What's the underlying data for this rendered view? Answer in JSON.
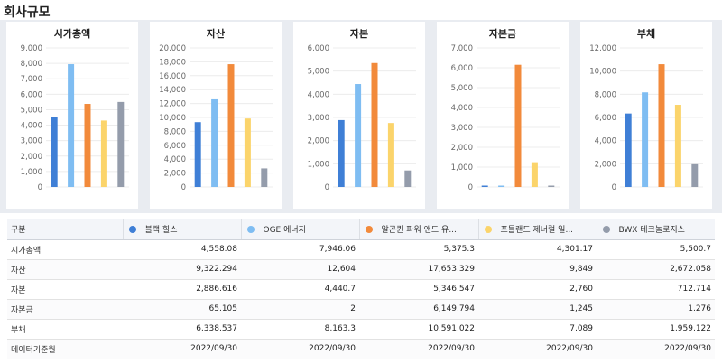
{
  "page": {
    "title": "회사규모"
  },
  "legend": {
    "series": [
      {
        "name": "블랙 힐스",
        "color": "#3f7fd6"
      },
      {
        "name": "OGE 에너지",
        "color": "#7fbdf2"
      },
      {
        "name": "알곤퀸 파워 앤드 유...",
        "color": "#f28a3b"
      },
      {
        "name": "포틀랜드 제너럴 일...",
        "color": "#fbd46b"
      },
      {
        "name": "BWX 테크놀로지스",
        "color": "#949cab"
      }
    ]
  },
  "chart_data": [
    {
      "type": "bar",
      "title": "시가총액",
      "ylim": [
        0,
        9000
      ],
      "yticks": [
        "0",
        "1,000",
        "2,000",
        "3,000",
        "4,000",
        "5,000",
        "6,000",
        "7,000",
        "8,000",
        "9,000"
      ],
      "series_names": [
        "블랙 힐스",
        "OGE 에너지",
        "알곤퀸 파워 앤드 유...",
        "포틀랜드 제너럴 일...",
        "BWX 테크놀로지스"
      ],
      "values": [
        4558.08,
        7946.06,
        5375.3,
        4301.17,
        5500.7
      ]
    },
    {
      "type": "bar",
      "title": "자산",
      "ylim": [
        0,
        20000
      ],
      "yticks": [
        "0",
        "2,000",
        "4,000",
        "6,000",
        "8,000",
        "10,000",
        "12,000",
        "14,000",
        "16,000",
        "18,000",
        "20,000"
      ],
      "series_names": [
        "블랙 힐스",
        "OGE 에너지",
        "알곤퀸 파워 앤드 유...",
        "포틀랜드 제너럴 일...",
        "BWX 테크놀로지스"
      ],
      "values": [
        9322.294,
        12604,
        17653.329,
        9849,
        2672.058
      ]
    },
    {
      "type": "bar",
      "title": "자본",
      "ylim": [
        0,
        6000
      ],
      "yticks": [
        "0",
        "1,000",
        "2,000",
        "3,000",
        "4,000",
        "5,000",
        "6,000"
      ],
      "series_names": [
        "블랙 힐스",
        "OGE 에너지",
        "알곤퀸 파워 앤드 유...",
        "포틀랜드 제너럴 일...",
        "BWX 테크놀로지스"
      ],
      "values": [
        2886.616,
        4440.7,
        5346.547,
        2760,
        712.714
      ]
    },
    {
      "type": "bar",
      "title": "자본금",
      "ylim": [
        0,
        7000
      ],
      "yticks": [
        "0",
        "1,000",
        "2,000",
        "3,000",
        "4,000",
        "5,000",
        "6,000",
        "7,000"
      ],
      "series_names": [
        "블랙 힐스",
        "OGE 에너지",
        "알곤퀸 파워 앤드 유...",
        "포틀랜드 제너럴 일...",
        "BWX 테크놀로지스"
      ],
      "values": [
        65.105,
        2,
        6149.794,
        1245,
        1.276
      ]
    },
    {
      "type": "bar",
      "title": "부채",
      "ylim": [
        0,
        12000
      ],
      "yticks": [
        "0",
        "2,000",
        "4,000",
        "6,000",
        "8,000",
        "10,000",
        "12,000"
      ],
      "series_names": [
        "블랙 힐스",
        "OGE 에너지",
        "알곤퀸 파워 앤드 유...",
        "포틀랜드 제너럴 일...",
        "BWX 테크놀로지스"
      ],
      "values": [
        6338.537,
        8163.3,
        10591.022,
        7089,
        1959.122
      ]
    }
  ],
  "table": {
    "header_label": "구분",
    "rows": [
      {
        "label": "시가총액",
        "cells": [
          "4,558.08",
          "7,946.06",
          "5,375.3",
          "4,301.17",
          "5,500.7"
        ]
      },
      {
        "label": "자산",
        "cells": [
          "9,322.294",
          "12,604",
          "17,653.329",
          "9,849",
          "2,672.058"
        ]
      },
      {
        "label": "자본",
        "cells": [
          "2,886.616",
          "4,440.7",
          "5,346.547",
          "2,760",
          "712.714"
        ]
      },
      {
        "label": "자본금",
        "cells": [
          "65.105",
          "2",
          "6,149.794",
          "1,245",
          "1.276"
        ]
      },
      {
        "label": "부채",
        "cells": [
          "6,338.537",
          "8,163.3",
          "10,591.022",
          "7,089",
          "1,959.122"
        ]
      },
      {
        "label": "데이터기준월",
        "cells": [
          "2022/09/30",
          "2022/09/30",
          "2022/09/30",
          "2022/09/30",
          "2022/09/30"
        ]
      }
    ]
  }
}
